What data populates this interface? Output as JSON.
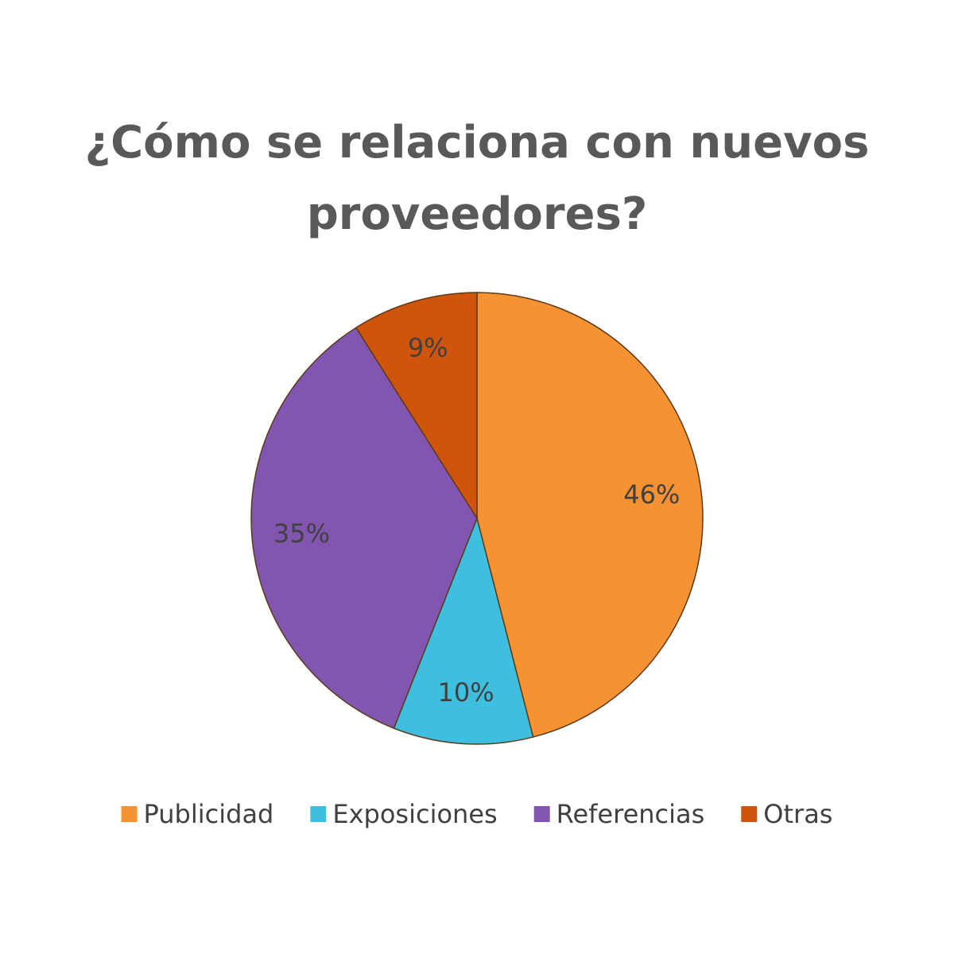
{
  "chart_data": {
    "type": "pie",
    "title": "¿Cómo se relaciona con nuevos proveedores?",
    "categories": [
      "Publicidad",
      "Exposiciones",
      "Referencias",
      "Otras"
    ],
    "values": [
      46,
      10,
      35,
      9
    ],
    "value_labels": [
      "46%",
      "10%",
      "35%",
      "9%"
    ],
    "colors": [
      "#f79232",
      "#3fbfe0",
      "#8256b0",
      "#d0550c"
    ],
    "legend": "bottom"
  }
}
